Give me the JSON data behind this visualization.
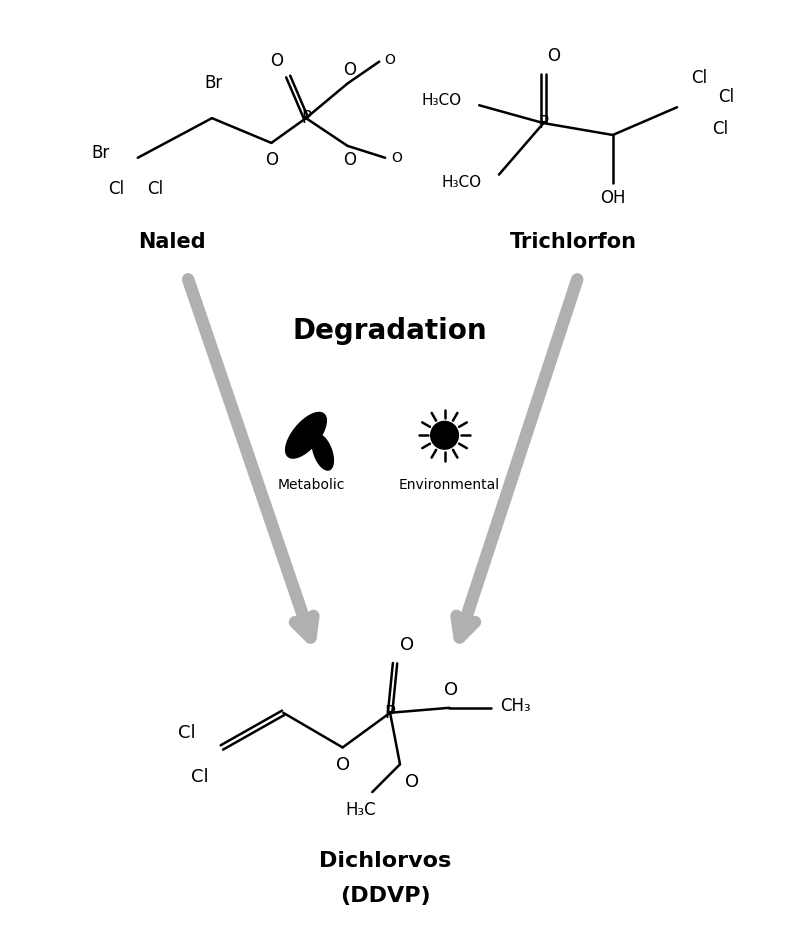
{
  "background_color": "#ffffff",
  "arrow_color": "#b0b0b0",
  "text_color": "#000000",
  "title": "Degradation",
  "label_naled": "Naled",
  "label_trichlorfon": "Trichlorfon",
  "label_ddvp_line1": "Dichlorvos",
  "label_ddvp_line2": "(DDVP)",
  "label_metabolic": "Metabolic",
  "label_environmental": "Environmental",
  "figsize": [
    8.0,
    9.3
  ],
  "dpi": 100
}
